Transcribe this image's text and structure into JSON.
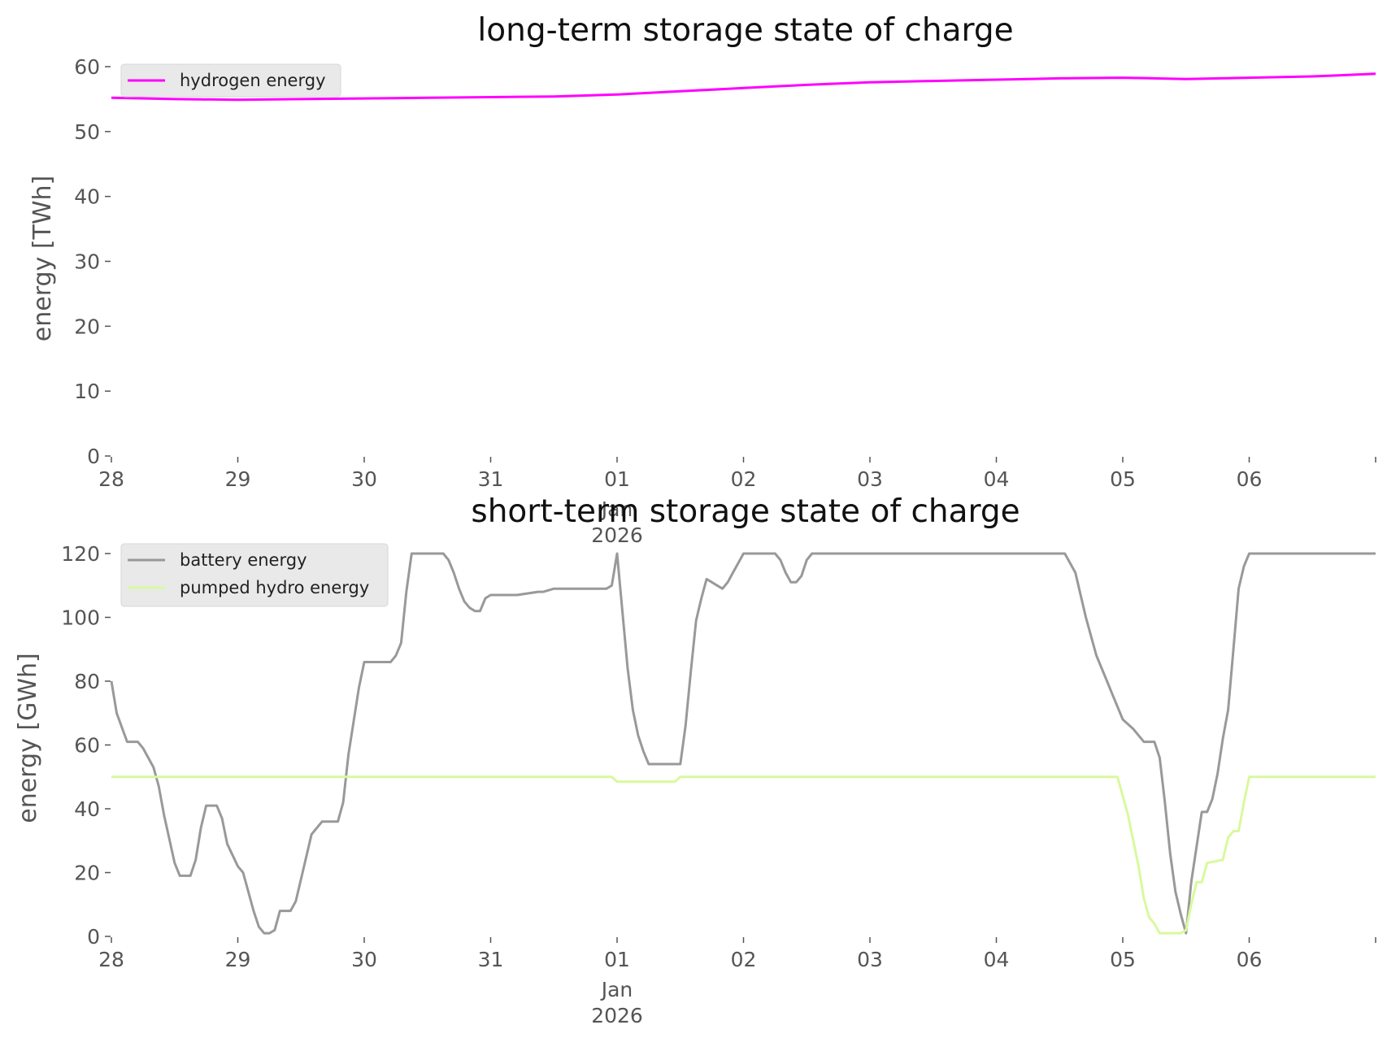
{
  "chart_data": [
    {
      "type": "line",
      "title": "long-term storage state of charge",
      "xlabel": "",
      "ylabel": "energy [TWh]",
      "ylim": [
        0,
        60
      ],
      "yticks": [
        "0",
        "10",
        "20",
        "30",
        "40",
        "50",
        "60"
      ],
      "xlim": [
        "2025-12-28",
        "2026-01-07"
      ],
      "xticks": [
        "28",
        "29",
        "30",
        "31",
        "01",
        "02",
        "03",
        "04",
        "05",
        "06"
      ],
      "xtick_sublabels": [
        "Jan",
        "2026"
      ],
      "grid": false,
      "legend": "top-left",
      "series": [
        {
          "name": "hydrogen energy",
          "color": "#ff00ff",
          "points": [
            [
              "2025-12-28 00:00",
              55.2
            ],
            [
              "2025-12-28 12:00",
              55.0
            ],
            [
              "2025-12-29 00:00",
              54.9
            ],
            [
              "2025-12-29 12:00",
              55.0
            ],
            [
              "2025-12-30 00:00",
              55.1
            ],
            [
              "2025-12-30 12:00",
              55.2
            ],
            [
              "2025-12-31 00:00",
              55.3
            ],
            [
              "2025-12-31 12:00",
              55.4
            ],
            [
              "2026-01-01 00:00",
              55.7
            ],
            [
              "2026-01-01 12:00",
              56.2
            ],
            [
              "2026-01-02 00:00",
              56.7
            ],
            [
              "2026-01-02 12:00",
              57.2
            ],
            [
              "2026-01-03 00:00",
              57.6
            ],
            [
              "2026-01-03 12:00",
              57.8
            ],
            [
              "2026-01-04 00:00",
              58.0
            ],
            [
              "2026-01-04 12:00",
              58.2
            ],
            [
              "2026-01-05 00:00",
              58.3
            ],
            [
              "2026-01-05 12:00",
              58.1
            ],
            [
              "2026-01-06 00:00",
              58.3
            ],
            [
              "2026-01-06 12:00",
              58.5
            ],
            [
              "2026-01-07 00:00",
              58.9
            ]
          ]
        }
      ]
    },
    {
      "type": "line",
      "title": "short-term storage state of charge",
      "xlabel": "",
      "ylabel": "energy [GWh]",
      "ylim": [
        0,
        120
      ],
      "yticks": [
        "0",
        "20",
        "40",
        "60",
        "80",
        "100",
        "120"
      ],
      "xlim": [
        "2025-12-28",
        "2026-01-07"
      ],
      "xticks": [
        "28",
        "29",
        "30",
        "31",
        "01",
        "02",
        "03",
        "04",
        "05",
        "06"
      ],
      "xtick_sublabels": [
        "Jan",
        "2026"
      ],
      "grid": false,
      "legend": "top-left",
      "series": [
        {
          "name": "battery energy",
          "color": "#999999",
          "points": [
            [
              "2025-12-28 00:00",
              80
            ],
            [
              "2025-12-28 01:00",
              70
            ],
            [
              "2025-12-28 03:00",
              61
            ],
            [
              "2025-12-28 05:00",
              61
            ],
            [
              "2025-12-28 06:00",
              59
            ],
            [
              "2025-12-28 08:00",
              53
            ],
            [
              "2025-12-28 09:00",
              47
            ],
            [
              "2025-12-28 10:00",
              38
            ],
            [
              "2025-12-28 12:00",
              23
            ],
            [
              "2025-12-28 13:00",
              19
            ],
            [
              "2025-12-28 15:00",
              19
            ],
            [
              "2025-12-28 16:00",
              24
            ],
            [
              "2025-12-28 17:00",
              34
            ],
            [
              "2025-12-28 18:00",
              41
            ],
            [
              "2025-12-28 20:00",
              41
            ],
            [
              "2025-12-28 21:00",
              37
            ],
            [
              "2025-12-28 22:00",
              29
            ],
            [
              "2025-12-29 00:00",
              22
            ],
            [
              "2025-12-29 01:00",
              20
            ],
            [
              "2025-12-29 03:00",
              8
            ],
            [
              "2025-12-29 04:00",
              3
            ],
            [
              "2025-12-29 05:00",
              1
            ],
            [
              "2025-12-29 06:00",
              1
            ],
            [
              "2025-12-29 07:00",
              2
            ],
            [
              "2025-12-29 08:00",
              8
            ],
            [
              "2025-12-29 10:00",
              8
            ],
            [
              "2025-12-29 11:00",
              11
            ],
            [
              "2025-12-29 12:00",
              18
            ],
            [
              "2025-12-29 14:00",
              32
            ],
            [
              "2025-12-29 16:00",
              36
            ],
            [
              "2025-12-29 19:00",
              36
            ],
            [
              "2025-12-29 20:00",
              42
            ],
            [
              "2025-12-29 21:00",
              57
            ],
            [
              "2025-12-29 23:00",
              78
            ],
            [
              "2025-12-30 00:00",
              86
            ],
            [
              "2025-12-30 01:00",
              86
            ],
            [
              "2025-12-30 05:00",
              86
            ],
            [
              "2025-12-30 06:00",
              88
            ],
            [
              "2025-12-30 07:00",
              92
            ],
            [
              "2025-12-30 08:00",
              108
            ],
            [
              "2025-12-30 09:00",
              120
            ],
            [
              "2025-12-30 15:00",
              120
            ],
            [
              "2025-12-30 16:00",
              118
            ],
            [
              "2025-12-30 17:00",
              114
            ],
            [
              "2025-12-30 18:00",
              109
            ],
            [
              "2025-12-30 19:00",
              105
            ],
            [
              "2025-12-30 20:00",
              103
            ],
            [
              "2025-12-30 21:00",
              102
            ],
            [
              "2025-12-30 22:00",
              102
            ],
            [
              "2025-12-30 23:00",
              106
            ],
            [
              "2025-12-31 00:00",
              107
            ],
            [
              "2025-12-31 05:00",
              107
            ],
            [
              "2025-12-31 09:00",
              108
            ],
            [
              "2025-12-31 10:00",
              108
            ],
            [
              "2025-12-31 12:00",
              109
            ],
            [
              "2025-12-31 22:00",
              109
            ],
            [
              "2025-12-31 23:00",
              110
            ],
            [
              "2026-01-01 00:00",
              120
            ],
            [
              "2026-01-01 01:00",
              102
            ],
            [
              "2026-01-01 02:00",
              84
            ],
            [
              "2026-01-01 03:00",
              71
            ],
            [
              "2026-01-01 04:00",
              63
            ],
            [
              "2026-01-01 05:00",
              58
            ],
            [
              "2026-01-01 06:00",
              54
            ],
            [
              "2026-01-01 12:00",
              54
            ],
            [
              "2026-01-01 13:00",
              66
            ],
            [
              "2026-01-01 14:00",
              83
            ],
            [
              "2026-01-01 15:00",
              99
            ],
            [
              "2026-01-01 16:00",
              106
            ],
            [
              "2026-01-01 17:00",
              112
            ],
            [
              "2026-01-01 18:00",
              111
            ],
            [
              "2026-01-01 19:00",
              110
            ],
            [
              "2026-01-01 20:00",
              109
            ],
            [
              "2026-01-01 21:00",
              111
            ],
            [
              "2026-01-01 22:00",
              114
            ],
            [
              "2026-01-01 23:00",
              117
            ],
            [
              "2026-01-02 00:00",
              120
            ],
            [
              "2026-01-02 06:00",
              120
            ],
            [
              "2026-01-02 07:00",
              118
            ],
            [
              "2026-01-02 08:00",
              114
            ],
            [
              "2026-01-02 09:00",
              111
            ],
            [
              "2026-01-02 10:00",
              111
            ],
            [
              "2026-01-02 11:00",
              113
            ],
            [
              "2026-01-02 12:00",
              118
            ],
            [
              "2026-01-02 13:00",
              120
            ],
            [
              "2026-01-04 13:00",
              120
            ],
            [
              "2026-01-04 15:00",
              114
            ],
            [
              "2026-01-04 17:00",
              100
            ],
            [
              "2026-01-04 19:00",
              88
            ],
            [
              "2026-01-04 21:00",
              80
            ],
            [
              "2026-01-04 22:00",
              76
            ],
            [
              "2026-01-05 00:00",
              68
            ],
            [
              "2026-01-05 02:00",
              65
            ],
            [
              "2026-01-05 04:00",
              61
            ],
            [
              "2026-01-05 06:00",
              61
            ],
            [
              "2026-01-05 07:00",
              56
            ],
            [
              "2026-01-05 08:00",
              42
            ],
            [
              "2026-01-05 09:00",
              26
            ],
            [
              "2026-01-05 10:00",
              14
            ],
            [
              "2026-01-05 11:00",
              7
            ],
            [
              "2026-01-05 12:00",
              1
            ],
            [
              "2026-01-05 13:00",
              17
            ],
            [
              "2026-01-05 14:00",
              28
            ],
            [
              "2026-01-05 15:00",
              39
            ],
            [
              "2026-01-05 16:00",
              39
            ],
            [
              "2026-01-05 17:00",
              43
            ],
            [
              "2026-01-05 18:00",
              51
            ],
            [
              "2026-01-05 19:00",
              62
            ],
            [
              "2026-01-05 20:00",
              71
            ],
            [
              "2026-01-05 21:00",
              90
            ],
            [
              "2026-01-05 22:00",
              109
            ],
            [
              "2026-01-05 23:00",
              116
            ],
            [
              "2026-01-06 00:00",
              120
            ],
            [
              "2026-01-07 00:00",
              120
            ]
          ]
        },
        {
          "name": "pumped hydro energy",
          "color": "#d9f99d",
          "points": [
            [
              "2025-12-28 00:00",
              50
            ],
            [
              "2025-12-31 23:00",
              50
            ],
            [
              "2026-01-01 00:00",
              48.5
            ],
            [
              "2026-01-01 11:00",
              48.5
            ],
            [
              "2026-01-01 12:00",
              50
            ],
            [
              "2026-01-04 23:00",
              50
            ],
            [
              "2026-01-05 01:00",
              38
            ],
            [
              "2026-01-05 03:00",
              22
            ],
            [
              "2026-01-05 04:00",
              12
            ],
            [
              "2026-01-05 05:00",
              6
            ],
            [
              "2026-01-05 06:00",
              4
            ],
            [
              "2026-01-05 07:00",
              1
            ],
            [
              "2026-01-05 11:00",
              1
            ],
            [
              "2026-01-05 12:00",
              2
            ],
            [
              "2026-01-05 13:00",
              10
            ],
            [
              "2026-01-05 14:00",
              17
            ],
            [
              "2026-01-05 15:00",
              17
            ],
            [
              "2026-01-05 16:00",
              23
            ],
            [
              "2026-01-05 19:00",
              24
            ],
            [
              "2026-01-05 20:00",
              31
            ],
            [
              "2026-01-05 21:00",
              33
            ],
            [
              "2026-01-05 22:00",
              33
            ],
            [
              "2026-01-05 23:00",
              42
            ],
            [
              "2026-01-06 00:00",
              50
            ],
            [
              "2026-01-07 00:00",
              50
            ]
          ]
        }
      ]
    }
  ]
}
